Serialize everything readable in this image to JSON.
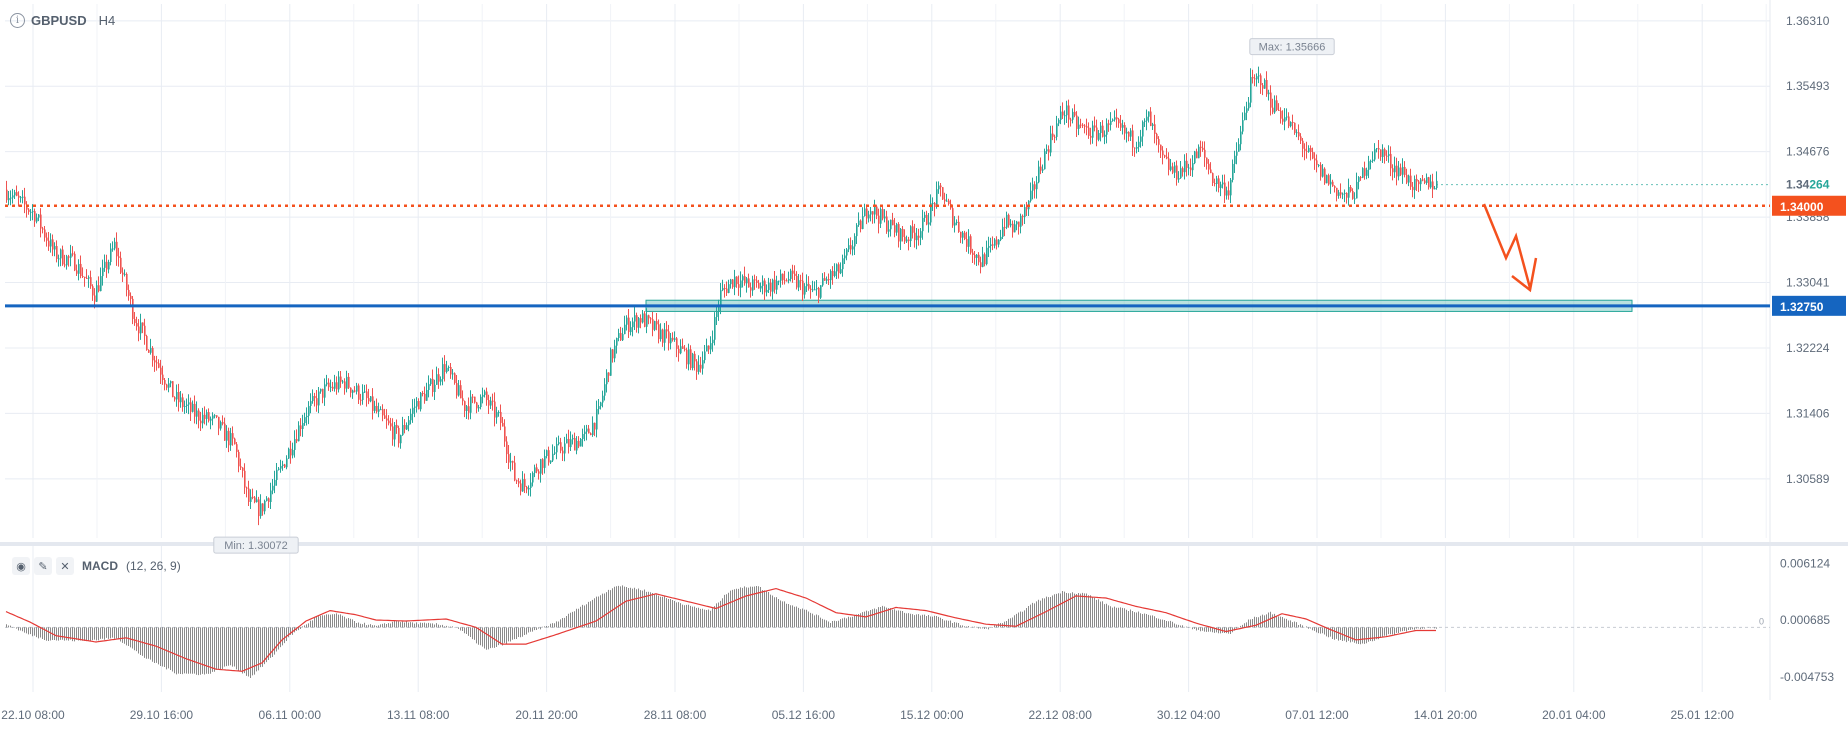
{
  "header": {
    "symbol": "GBPUSD",
    "timeframe": "H4",
    "info_icon": "i"
  },
  "indicator": {
    "name": "MACD",
    "params": "(12, 26, 9)",
    "icons": [
      "eye-icon",
      "wrench-icon",
      "close-icon"
    ]
  },
  "price_axis": {
    "ticks": [
      "1.36310",
      "1.35493",
      "1.34676",
      "1.33858",
      "1.33041",
      "1.32224",
      "1.31406",
      "1.30589"
    ],
    "current_price": {
      "label": "1.34264",
      "value": 1.34264,
      "color": "#26a69a"
    },
    "resistance_tag": {
      "label": "1.34000",
      "value": 1.34,
      "color": "#f4511e"
    },
    "support_tag": {
      "label": "1.32750",
      "value": 1.3275,
      "color": "#1565c0"
    }
  },
  "macd_axis": {
    "ticks": [
      "0.006124",
      "0.000685",
      "-0.004753"
    ],
    "zero_label": "0"
  },
  "time_axis": {
    "labels": [
      "22.10 08:00",
      "29.10 16:00",
      "06.11 00:00",
      "13.11 08:00",
      "20.11 20:00",
      "28.11 08:00",
      "05.12 16:00",
      "15.12 00:00",
      "22.12 08:00",
      "30.12 04:00",
      "07.01 12:00",
      "14.01 20:00",
      "20.01 04:00",
      "25.01 12:00"
    ]
  },
  "annotations": {
    "max_label": "Max: 1.35666",
    "min_label": "Min: 1.30072"
  },
  "colors": {
    "up": "#26a69a",
    "down": "#ef5350",
    "grid": "#e8ecf3",
    "macd_signal": "#e53935",
    "macd_hist": "#3c3c3c",
    "zone_fill": "#80cbc4",
    "arrow": "#f4511e"
  },
  "chart_data": [
    {
      "type": "candlestick",
      "title": "GBPUSD H4",
      "ylim": [
        1.2985,
        1.3652
      ],
      "anchors": [
        [
          0,
          1.342
        ],
        [
          15,
          1.339
        ],
        [
          25,
          1.334
        ],
        [
          35,
          1.333
        ],
        [
          45,
          1.329
        ],
        [
          55,
          1.335
        ],
        [
          65,
          1.326
        ],
        [
          75,
          1.321
        ],
        [
          85,
          1.316
        ],
        [
          95,
          1.314
        ],
        [
          105,
          1.313
        ],
        [
          115,
          1.31
        ],
        [
          122,
          1.303
        ],
        [
          128,
          1.302
        ],
        [
          138,
          1.307
        ],
        [
          150,
          1.314
        ],
        [
          160,
          1.317
        ],
        [
          170,
          1.318
        ],
        [
          180,
          1.316
        ],
        [
          190,
          1.313
        ],
        [
          197,
          1.311
        ],
        [
          205,
          1.315
        ],
        [
          212,
          1.317
        ],
        [
          220,
          1.32
        ],
        [
          230,
          1.315
        ],
        [
          240,
          1.316
        ],
        [
          248,
          1.313
        ],
        [
          255,
          1.306
        ],
        [
          260,
          1.305
        ],
        [
          268,
          1.308
        ],
        [
          280,
          1.31
        ],
        [
          290,
          1.311
        ],
        [
          297,
          1.314
        ],
        [
          303,
          1.321
        ],
        [
          310,
          1.325
        ],
        [
          318,
          1.326
        ],
        [
          328,
          1.324
        ],
        [
          338,
          1.322
        ],
        [
          346,
          1.32
        ],
        [
          352,
          1.322
        ],
        [
          358,
          1.329
        ],
        [
          365,
          1.331
        ],
        [
          372,
          1.33
        ],
        [
          382,
          1.33
        ],
        [
          392,
          1.331
        ],
        [
          398,
          1.33
        ],
        [
          405,
          1.329
        ],
        [
          412,
          1.331
        ],
        [
          418,
          1.332
        ],
        [
          425,
          1.336
        ],
        [
          432,
          1.34
        ],
        [
          440,
          1.338
        ],
        [
          450,
          1.336
        ],
        [
          458,
          1.337
        ],
        [
          468,
          1.342
        ],
        [
          473,
          1.339
        ],
        [
          480,
          1.336
        ],
        [
          488,
          1.333
        ],
        [
          495,
          1.335
        ],
        [
          500,
          1.338
        ],
        [
          505,
          1.337
        ],
        [
          512,
          1.34
        ],
        [
          518,
          1.345
        ],
        [
          524,
          1.349
        ],
        [
          530,
          1.352
        ],
        [
          536,
          1.35
        ],
        [
          545,
          1.349
        ],
        [
          555,
          1.35
        ],
        [
          565,
          1.348
        ],
        [
          572,
          1.351
        ],
        [
          578,
          1.346
        ],
        [
          585,
          1.344
        ],
        [
          592,
          1.345
        ],
        [
          598,
          1.347
        ],
        [
          605,
          1.343
        ],
        [
          612,
          1.342
        ],
        [
          618,
          1.349
        ],
        [
          623,
          1.355
        ],
        [
          628,
          1.356
        ],
        [
          633,
          1.353
        ],
        [
          640,
          1.351
        ],
        [
          648,
          1.348
        ],
        [
          655,
          1.345
        ],
        [
          662,
          1.343
        ],
        [
          670,
          1.341
        ],
        [
          676,
          1.342
        ],
        [
          682,
          1.346
        ],
        [
          688,
          1.347
        ],
        [
          694,
          1.345
        ],
        [
          700,
          1.344
        ],
        [
          706,
          1.342
        ],
        [
          712,
          1.343
        ],
        [
          716,
          1.3426
        ]
      ],
      "max": 1.35666,
      "min": 1.30072,
      "levels": [
        {
          "label": "1.34000",
          "value": 1.34
        },
        {
          "label": "1.32750",
          "value": 1.3275
        }
      ],
      "support_zone": [
        1.3268,
        1.3282
      ]
    },
    {
      "type": "bar",
      "title": "MACD (12, 26, 9)",
      "ylim": [
        -0.0058,
        0.0072
      ],
      "histogram_anchors": [
        [
          0,
          0.0003
        ],
        [
          10,
          -0.0006
        ],
        [
          20,
          -0.0012
        ],
        [
          40,
          -0.0013
        ],
        [
          55,
          -0.001
        ],
        [
          70,
          -0.003
        ],
        [
          85,
          -0.0044
        ],
        [
          100,
          -0.0045
        ],
        [
          112,
          -0.0036
        ],
        [
          122,
          -0.0048
        ],
        [
          132,
          -0.003
        ],
        [
          142,
          -0.0008
        ],
        [
          155,
          0.001
        ],
        [
          165,
          0.0013
        ],
        [
          175,
          0.0005
        ],
        [
          185,
          0.0001
        ],
        [
          195,
          0.0006
        ],
        [
          205,
          0.0004
        ],
        [
          215,
          0.0003
        ],
        [
          225,
          0.0
        ],
        [
          232,
          -0.001
        ],
        [
          240,
          -0.0022
        ],
        [
          250,
          -0.0015
        ],
        [
          262,
          -0.0005
        ],
        [
          275,
          0.0005
        ],
        [
          290,
          0.0023
        ],
        [
          305,
          0.004
        ],
        [
          318,
          0.0036
        ],
        [
          330,
          0.0028
        ],
        [
          342,
          0.002
        ],
        [
          352,
          0.0016
        ],
        [
          362,
          0.0036
        ],
        [
          375,
          0.004
        ],
        [
          388,
          0.0025
        ],
        [
          400,
          0.0016
        ],
        [
          412,
          0.0005
        ],
        [
          425,
          0.0012
        ],
        [
          438,
          0.002
        ],
        [
          452,
          0.0013
        ],
        [
          465,
          0.001
        ],
        [
          478,
          0.0002
        ],
        [
          490,
          -0.0002
        ],
        [
          502,
          0.0008
        ],
        [
          515,
          0.0025
        ],
        [
          528,
          0.0034
        ],
        [
          540,
          0.0032
        ],
        [
          552,
          0.002
        ],
        [
          565,
          0.0015
        ],
        [
          578,
          0.0008
        ],
        [
          590,
          0.0
        ],
        [
          602,
          -0.0005
        ],
        [
          612,
          -0.0006
        ],
        [
          622,
          0.0008
        ],
        [
          632,
          0.0014
        ],
        [
          645,
          0.0004
        ],
        [
          655,
          -0.0004
        ],
        [
          665,
          -0.0012
        ],
        [
          678,
          -0.0016
        ],
        [
          690,
          -0.0008
        ],
        [
          700,
          -0.0003
        ],
        [
          710,
          0.0
        ],
        [
          716,
          -0.0002
        ]
      ],
      "signal_anchors": [
        [
          0,
          0.0015
        ],
        [
          12,
          0.0005
        ],
        [
          25,
          -0.0008
        ],
        [
          45,
          -0.0014
        ],
        [
          60,
          -0.001
        ],
        [
          75,
          -0.0018
        ],
        [
          90,
          -0.003
        ],
        [
          105,
          -0.004
        ],
        [
          118,
          -0.0042
        ],
        [
          128,
          -0.0034
        ],
        [
          138,
          -0.0012
        ],
        [
          150,
          0.0006
        ],
        [
          162,
          0.0016
        ],
        [
          175,
          0.0012
        ],
        [
          185,
          0.0007
        ],
        [
          200,
          0.0006
        ],
        [
          220,
          0.0008
        ],
        [
          235,
          0.0
        ],
        [
          248,
          -0.0016
        ],
        [
          260,
          -0.0016
        ],
        [
          275,
          -0.0007
        ],
        [
          295,
          0.0006
        ],
        [
          310,
          0.0025
        ],
        [
          325,
          0.0032
        ],
        [
          340,
          0.0025
        ],
        [
          355,
          0.0018
        ],
        [
          370,
          0.003
        ],
        [
          385,
          0.0037
        ],
        [
          400,
          0.0028
        ],
        [
          415,
          0.0014
        ],
        [
          430,
          0.001
        ],
        [
          445,
          0.0019
        ],
        [
          460,
          0.0016
        ],
        [
          475,
          0.0009
        ],
        [
          490,
          0.0003
        ],
        [
          505,
          0.0001
        ],
        [
          520,
          0.0015
        ],
        [
          535,
          0.003
        ],
        [
          550,
          0.0028
        ],
        [
          565,
          0.002
        ],
        [
          580,
          0.0014
        ],
        [
          595,
          0.0004
        ],
        [
          610,
          -0.0004
        ],
        [
          625,
          0.0002
        ],
        [
          638,
          0.0013
        ],
        [
          650,
          0.0008
        ],
        [
          662,
          -0.0002
        ],
        [
          675,
          -0.0012
        ],
        [
          690,
          -0.0009
        ],
        [
          705,
          -0.0003
        ],
        [
          716,
          -0.0003
        ]
      ]
    }
  ]
}
